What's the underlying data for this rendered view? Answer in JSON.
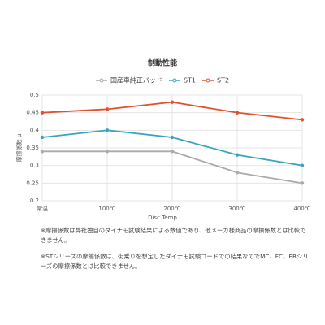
{
  "chart_data": {
    "type": "line",
    "title": "制動性能",
    "categories": [
      "常温",
      "100℃",
      "200℃",
      "300℃",
      "400℃"
    ],
    "series": [
      {
        "name": "国産車純正パッド",
        "color": "#aaaaaa",
        "values": [
          0.34,
          0.34,
          0.34,
          0.28,
          0.25
        ]
      },
      {
        "name": "ST1",
        "color": "#3aa3bf",
        "values": [
          0.38,
          0.4,
          0.38,
          0.33,
          0.3
        ]
      },
      {
        "name": "ST2",
        "color": "#e0512f",
        "values": [
          0.45,
          0.46,
          0.48,
          0.45,
          0.43
        ]
      }
    ],
    "x_label": "Disc Temp",
    "y_label": "摩擦係数 μ",
    "ylim": [
      0.2,
      0.5
    ],
    "yticks": [
      0.2,
      0.25,
      0.3,
      0.35,
      0.4,
      0.45,
      0.5
    ],
    "grid": true
  },
  "notes": [
    "※摩擦係数は弊社独自のダイナモ試験結果による数値であり、他メーカ様商品の摩擦係数とは比較できません。",
    "※STシリーズの摩擦係数は、街乗りを想定したダイナモ試験コードでの結果なのでMC、FC、ERシリーズの摩擦係数とは比較できません。"
  ]
}
